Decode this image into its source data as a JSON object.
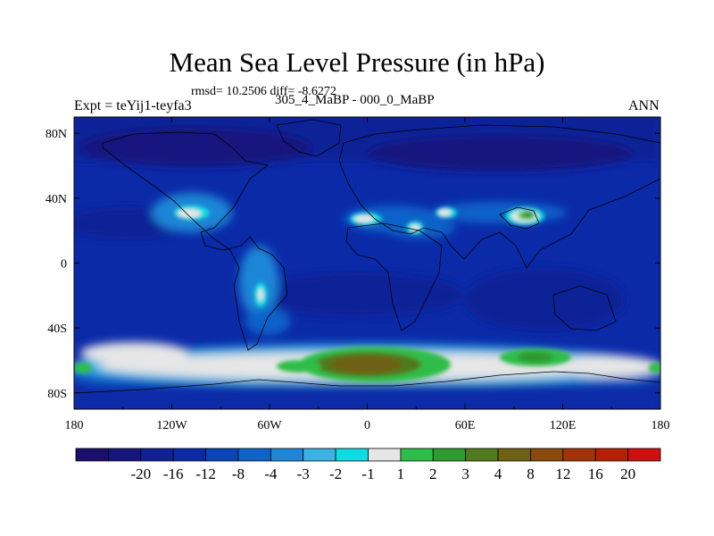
{
  "map": {
    "title": "Mean Sea Level Pressure (in hPa)",
    "stats": "rmsd= 10.2506 diff= -8.6272",
    "left_label": "Expt = teYij1-teyfa3",
    "center_label": "305_4_MaBP - 000_0_MaBP",
    "right_label": "ANN",
    "lon_ticks": [
      "180",
      "120W",
      "60W",
      "0",
      "60E",
      "120E",
      "180"
    ],
    "lat_ticks": [
      "80N",
      "40N",
      "0",
      "40S",
      "80S"
    ],
    "lon_tick_values": [
      -180,
      -120,
      -60,
      0,
      60,
      120,
      180
    ],
    "lat_tick_values": [
      80,
      40,
      0,
      -40,
      -80
    ],
    "lon_range": [
      -180,
      180
    ],
    "lat_range": [
      -90,
      90
    ]
  },
  "colorbar": {
    "labels": [
      "-20",
      "-16",
      "-12",
      "-8",
      "-4",
      "-3",
      "-2",
      "-1",
      "1",
      "2",
      "3",
      "4",
      "8",
      "12",
      "16",
      "20"
    ],
    "colors": [
      "#1a0f6b",
      "#16157e",
      "#102097",
      "#0b2aa8",
      "#0a44b8",
      "#0f62c9",
      "#1d86d6",
      "#39b3e2",
      "#0ddde0",
      "#e6e6e6",
      "#2dbd4a",
      "#2f9a2d",
      "#4f7a1e",
      "#6e6014",
      "#8a4a0e",
      "#a43208",
      "#b81e05",
      "#d01010"
    ]
  }
}
